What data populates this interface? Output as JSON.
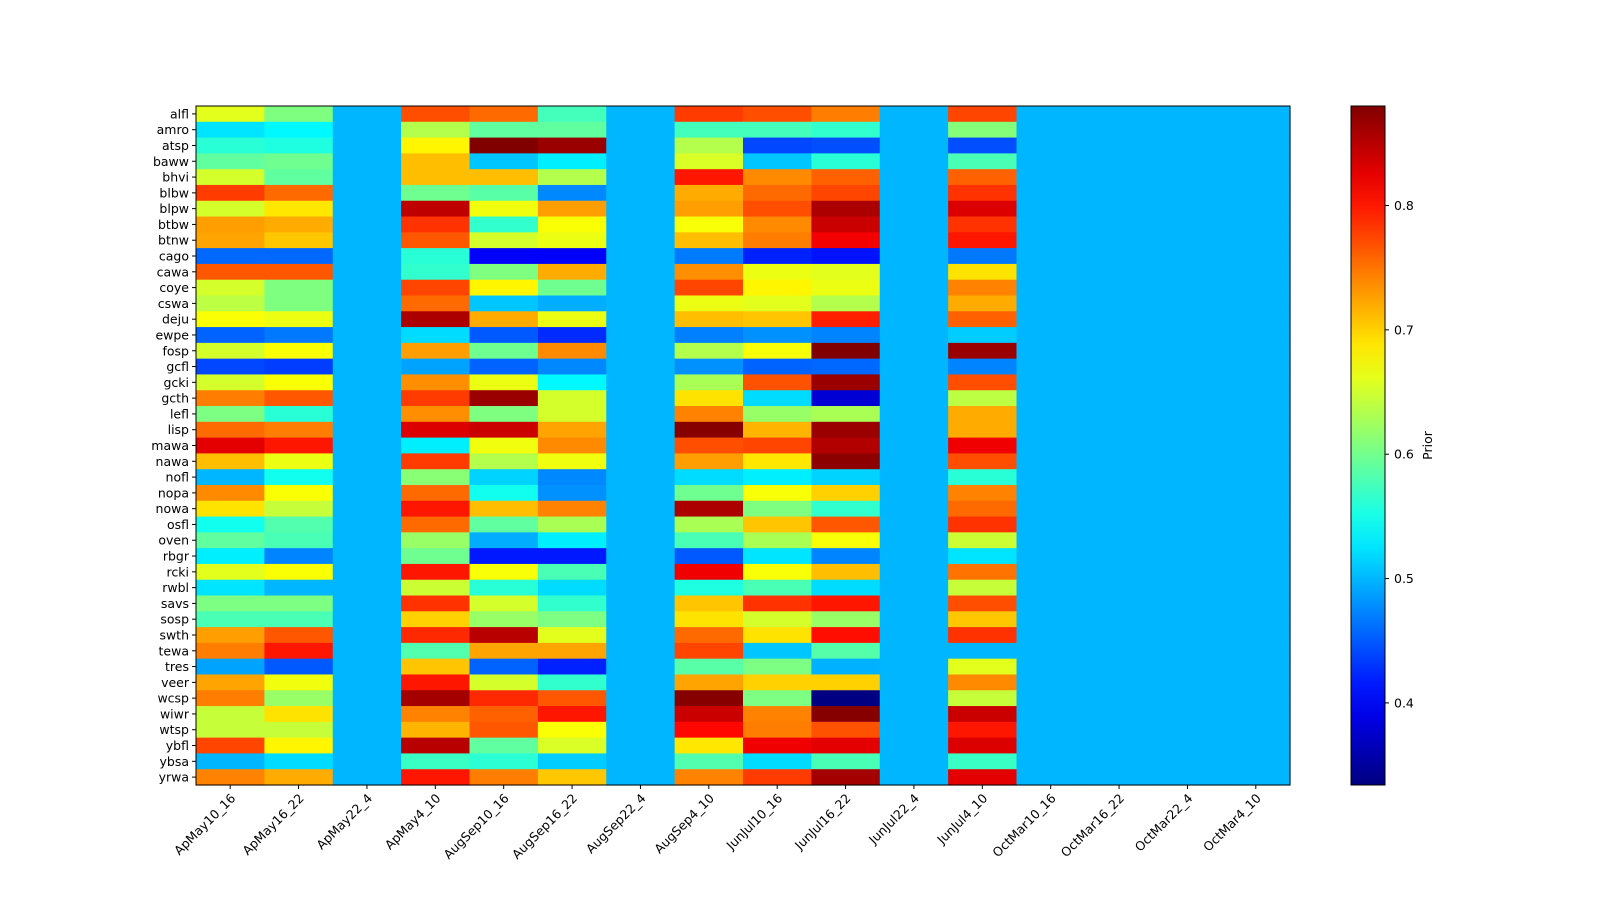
{
  "chart_data": {
    "type": "heatmap",
    "title": "",
    "xlabel": "",
    "ylabel": "",
    "colormap": "jet",
    "colorbar": {
      "label": "Prior",
      "vmin": 0.334,
      "vmax": 0.88,
      "ticks": [
        0.4,
        0.5,
        0.6,
        0.7,
        0.8
      ],
      "tick_labels": [
        "0.4",
        "0.5",
        "0.6",
        "0.7",
        "0.8"
      ]
    },
    "columns": [
      "ApMay10_16",
      "ApMay16_22",
      "ApMay22_4",
      "ApMay4_10",
      "AugSep10_16",
      "AugSep16_22",
      "AugSep22_4",
      "AugSep4_10",
      "JunJul10_16",
      "JunJul16_22",
      "JunJul22_4",
      "JunJul4_10",
      "OctMar10_16",
      "OctMar16_22",
      "OctMar22_4",
      "OctMar4_10"
    ],
    "rows": [
      "alfl",
      "amro",
      "atsp",
      "baww",
      "bhvi",
      "blbw",
      "blpw",
      "btbw",
      "btnw",
      "cago",
      "cawa",
      "coye",
      "cswa",
      "deju",
      "ewpe",
      "fosp",
      "gcfl",
      "gcki",
      "gcth",
      "lefl",
      "lisp",
      "mawa",
      "nawa",
      "nofl",
      "nopa",
      "nowa",
      "osfl",
      "oven",
      "rbgr",
      "rcki",
      "rwbl",
      "savs",
      "sosp",
      "swth",
      "tewa",
      "tres",
      "veer",
      "wcsp",
      "wiwr",
      "wtsp",
      "ybfl",
      "ybsa",
      "yrwa"
    ],
    "values": [
      [
        0.66,
        0.607,
        0.5,
        0.77,
        0.755,
        0.575,
        0.5,
        0.78,
        0.77,
        0.745,
        0.5,
        0.775,
        0.5,
        0.5,
        0.5,
        0.5
      ],
      [
        0.525,
        0.535,
        0.5,
        0.635,
        0.59,
        0.59,
        0.5,
        0.575,
        0.575,
        0.565,
        0.5,
        0.61,
        0.5,
        0.5,
        0.5,
        0.5
      ],
      [
        0.56,
        0.555,
        0.5,
        0.68,
        0.88,
        0.866,
        0.5,
        0.635,
        0.44,
        0.444,
        0.5,
        0.444,
        0.5,
        0.5,
        0.5,
        0.5
      ],
      [
        0.59,
        0.598,
        0.5,
        0.71,
        0.508,
        0.53,
        0.5,
        0.655,
        0.508,
        0.56,
        0.5,
        0.578,
        0.5,
        0.5,
        0.5,
        0.5
      ],
      [
        0.652,
        0.59,
        0.5,
        0.71,
        0.71,
        0.635,
        0.5,
        0.8,
        0.738,
        0.76,
        0.5,
        0.76,
        0.5,
        0.5,
        0.5,
        0.5
      ],
      [
        0.78,
        0.755,
        0.5,
        0.598,
        0.586,
        0.475,
        0.5,
        0.72,
        0.755,
        0.775,
        0.5,
        0.785,
        0.5,
        0.5,
        0.5,
        0.5
      ],
      [
        0.652,
        0.688,
        0.5,
        0.846,
        0.668,
        0.727,
        0.5,
        0.727,
        0.77,
        0.856,
        0.5,
        0.83,
        0.5,
        0.5,
        0.5,
        0.5
      ],
      [
        0.727,
        0.72,
        0.5,
        0.785,
        0.565,
        0.673,
        0.5,
        0.672,
        0.738,
        0.84,
        0.5,
        0.785,
        0.5,
        0.5,
        0.5,
        0.5
      ],
      [
        0.724,
        0.705,
        0.5,
        0.765,
        0.652,
        0.665,
        0.5,
        0.71,
        0.745,
        0.818,
        0.5,
        0.8,
        0.5,
        0.5,
        0.5,
        0.5
      ],
      [
        0.458,
        0.458,
        0.5,
        0.56,
        0.4,
        0.4,
        0.5,
        0.468,
        0.42,
        0.412,
        0.5,
        0.467,
        0.5,
        0.5,
        0.5,
        0.5
      ],
      [
        0.765,
        0.765,
        0.5,
        0.565,
        0.607,
        0.72,
        0.5,
        0.735,
        0.665,
        0.66,
        0.5,
        0.69,
        0.5,
        0.5,
        0.5,
        0.5
      ],
      [
        0.652,
        0.607,
        0.5,
        0.775,
        0.68,
        0.598,
        0.5,
        0.775,
        0.68,
        0.665,
        0.5,
        0.742,
        0.5,
        0.5,
        0.5,
        0.5
      ],
      [
        0.64,
        0.607,
        0.5,
        0.755,
        0.508,
        0.495,
        0.5,
        0.665,
        0.66,
        0.635,
        0.5,
        0.72,
        0.5,
        0.5,
        0.5,
        0.5
      ],
      [
        0.673,
        0.665,
        0.5,
        0.856,
        0.72,
        0.665,
        0.5,
        0.71,
        0.706,
        0.795,
        0.5,
        0.76,
        0.5,
        0.5,
        0.5,
        0.5
      ],
      [
        0.455,
        0.467,
        0.5,
        0.52,
        0.45,
        0.425,
        0.5,
        0.47,
        0.48,
        0.473,
        0.5,
        0.512,
        0.5,
        0.5,
        0.5,
        0.5
      ],
      [
        0.652,
        0.673,
        0.5,
        0.727,
        0.598,
        0.738,
        0.5,
        0.635,
        0.672,
        0.88,
        0.5,
        0.866,
        0.5,
        0.5,
        0.5,
        0.5
      ],
      [
        0.44,
        0.435,
        0.5,
        0.49,
        0.455,
        0.475,
        0.5,
        0.48,
        0.455,
        0.458,
        0.5,
        0.473,
        0.5,
        0.5,
        0.5,
        0.5
      ],
      [
        0.652,
        0.673,
        0.5,
        0.735,
        0.665,
        0.535,
        0.5,
        0.63,
        0.768,
        0.866,
        0.5,
        0.77,
        0.5,
        0.5,
        0.5,
        0.5
      ],
      [
        0.745,
        0.765,
        0.5,
        0.78,
        0.866,
        0.652,
        0.5,
        0.69,
        0.52,
        0.38,
        0.5,
        0.64,
        0.5,
        0.5,
        0.5,
        0.5
      ],
      [
        0.605,
        0.56,
        0.5,
        0.735,
        0.607,
        0.652,
        0.5,
        0.742,
        0.62,
        0.63,
        0.5,
        0.72,
        0.5,
        0.5,
        0.5,
        0.5
      ],
      [
        0.755,
        0.745,
        0.5,
        0.83,
        0.84,
        0.724,
        0.5,
        0.876,
        0.715,
        0.866,
        0.5,
        0.72,
        0.5,
        0.5,
        0.5,
        0.5
      ],
      [
        0.826,
        0.8,
        0.5,
        0.53,
        0.668,
        0.738,
        0.5,
        0.77,
        0.775,
        0.853,
        0.5,
        0.82,
        0.5,
        0.5,
        0.5,
        0.5
      ],
      [
        0.71,
        0.665,
        0.5,
        0.78,
        0.635,
        0.668,
        0.5,
        0.727,
        0.688,
        0.873,
        0.5,
        0.77,
        0.5,
        0.5,
        0.5,
        0.5
      ],
      [
        0.5,
        0.548,
        0.5,
        0.612,
        0.515,
        0.475,
        0.5,
        0.52,
        0.53,
        0.515,
        0.5,
        0.56,
        0.5,
        0.5,
        0.5,
        0.5
      ],
      [
        0.738,
        0.673,
        0.5,
        0.755,
        0.548,
        0.48,
        0.5,
        0.598,
        0.672,
        0.7,
        0.5,
        0.742,
        0.5,
        0.5,
        0.5,
        0.5
      ],
      [
        0.69,
        0.645,
        0.5,
        0.8,
        0.71,
        0.742,
        0.5,
        0.856,
        0.607,
        0.565,
        0.5,
        0.755,
        0.5,
        0.5,
        0.5,
        0.5
      ],
      [
        0.548,
        0.582,
        0.5,
        0.755,
        0.59,
        0.63,
        0.5,
        0.63,
        0.706,
        0.765,
        0.5,
        0.785,
        0.5,
        0.5,
        0.5,
        0.5
      ],
      [
        0.59,
        0.578,
        0.5,
        0.62,
        0.495,
        0.53,
        0.5,
        0.578,
        0.63,
        0.672,
        0.5,
        0.648,
        0.5,
        0.5,
        0.5,
        0.5
      ],
      [
        0.53,
        0.473,
        0.5,
        0.598,
        0.415,
        0.415,
        0.5,
        0.45,
        0.525,
        0.473,
        0.5,
        0.525,
        0.5,
        0.5,
        0.5,
        0.5
      ],
      [
        0.66,
        0.673,
        0.5,
        0.8,
        0.672,
        0.578,
        0.5,
        0.82,
        0.672,
        0.71,
        0.5,
        0.75,
        0.5,
        0.5,
        0.5,
        0.5
      ],
      [
        0.525,
        0.5,
        0.5,
        0.648,
        0.56,
        0.52,
        0.5,
        0.555,
        0.578,
        0.52,
        0.5,
        0.645,
        0.5,
        0.5,
        0.5,
        0.5
      ],
      [
        0.605,
        0.605,
        0.5,
        0.785,
        0.652,
        0.565,
        0.5,
        0.706,
        0.785,
        0.8,
        0.5,
        0.77,
        0.5,
        0.5,
        0.5,
        0.5
      ],
      [
        0.578,
        0.578,
        0.5,
        0.7,
        0.62,
        0.605,
        0.5,
        0.69,
        0.652,
        0.62,
        0.5,
        0.705,
        0.5,
        0.5,
        0.5,
        0.5
      ],
      [
        0.727,
        0.765,
        0.5,
        0.79,
        0.85,
        0.66,
        0.5,
        0.755,
        0.69,
        0.805,
        0.5,
        0.785,
        0.5,
        0.5,
        0.5,
        0.5
      ],
      [
        0.745,
        0.8,
        0.5,
        0.582,
        0.724,
        0.724,
        0.5,
        0.775,
        0.508,
        0.584,
        0.5,
        0.5,
        0.5,
        0.5,
        0.5,
        0.5
      ],
      [
        0.49,
        0.45,
        0.5,
        0.706,
        0.455,
        0.42,
        0.5,
        0.586,
        0.605,
        0.497,
        0.5,
        0.66,
        0.5,
        0.5,
        0.5,
        0.5
      ],
      [
        0.724,
        0.668,
        0.5,
        0.8,
        0.652,
        0.565,
        0.5,
        0.724,
        0.7,
        0.7,
        0.5,
        0.738,
        0.5,
        0.5,
        0.5,
        0.5
      ],
      [
        0.745,
        0.62,
        0.5,
        0.86,
        0.79,
        0.765,
        0.5,
        0.876,
        0.605,
        0.336,
        0.5,
        0.645,
        0.5,
        0.5,
        0.5,
        0.5
      ],
      [
        0.645,
        0.69,
        0.5,
        0.742,
        0.76,
        0.8,
        0.5,
        0.84,
        0.742,
        0.876,
        0.5,
        0.84,
        0.5,
        0.5,
        0.5,
        0.5
      ],
      [
        0.645,
        0.645,
        0.5,
        0.715,
        0.765,
        0.673,
        0.5,
        0.808,
        0.745,
        0.768,
        0.5,
        0.8,
        0.5,
        0.5,
        0.5,
        0.5
      ],
      [
        0.775,
        0.68,
        0.5,
        0.85,
        0.59,
        0.655,
        0.5,
        0.688,
        0.82,
        0.826,
        0.5,
        0.83,
        0.5,
        0.5,
        0.5,
        0.5
      ],
      [
        0.5,
        0.52,
        0.5,
        0.57,
        0.562,
        0.512,
        0.5,
        0.582,
        0.52,
        0.578,
        0.5,
        0.57,
        0.5,
        0.5,
        0.5,
        0.5
      ],
      [
        0.742,
        0.72,
        0.5,
        0.8,
        0.745,
        0.705,
        0.5,
        0.742,
        0.78,
        0.86,
        0.5,
        0.826,
        0.5,
        0.5,
        0.5,
        0.5
      ]
    ],
    "grid": false,
    "legend": "colorbar-right"
  }
}
